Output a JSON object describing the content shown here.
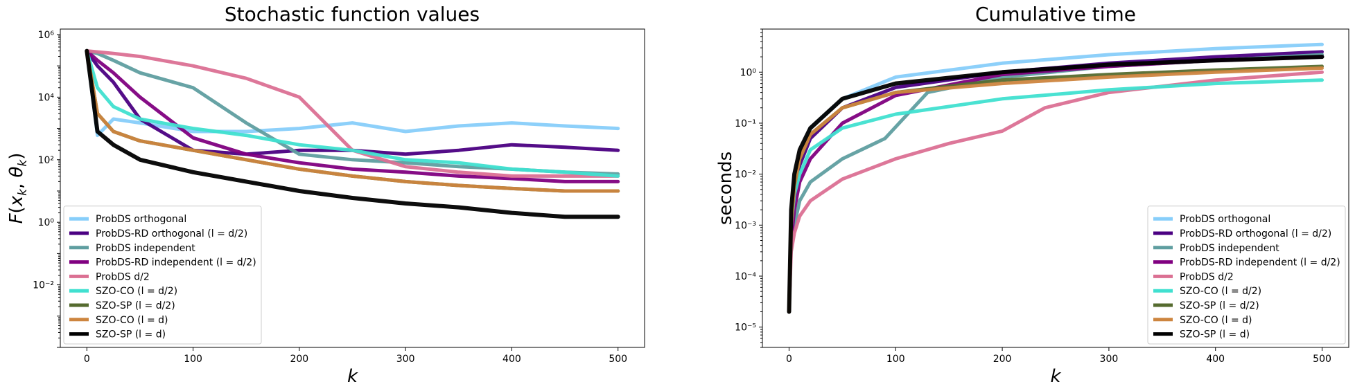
{
  "chart_data": [
    {
      "type": "line",
      "title": "Stochastic function values",
      "xlabel": "k",
      "ylabel": "F(x_k, θ_k)",
      "ylabel_parts": {
        "base": "F(",
        "x": "x",
        "x_sub": "k",
        "sep": ", ",
        "theta": "θ",
        "theta_sub": "k",
        "close": ")"
      },
      "yscale": "log",
      "xlim": [
        -25,
        525
      ],
      "ylim": [
        0.0001,
        1500000
      ],
      "xticks": [
        0,
        100,
        200,
        300,
        400,
        500
      ],
      "ytick_exponents": [
        -2,
        0,
        2,
        4,
        6
      ],
      "legend_position": "lower-left",
      "series": [
        {
          "name": "ProbDS orthogonal",
          "color": "#87CEFA",
          "x": [
            0,
            10,
            25,
            50,
            100,
            150,
            200,
            250,
            300,
            350,
            400,
            450,
            500
          ],
          "y": [
            300000,
            600,
            2000,
            1500,
            800,
            800,
            1000,
            1500,
            800,
            1200,
            1500,
            1200,
            1000
          ]
        },
        {
          "name": "ProbDS-RD orthogonal (l = d/2)",
          "color": "#4B0082",
          "x": [
            0,
            10,
            25,
            50,
            100,
            150,
            200,
            250,
            300,
            350,
            400,
            450,
            500
          ],
          "y": [
            300000,
            100000,
            30000,
            2000,
            200,
            150,
            200,
            200,
            150,
            200,
            300,
            250,
            200
          ]
        },
        {
          "name": "ProbDS independent",
          "color": "#5F9EA0",
          "x": [
            0,
            10,
            25,
            50,
            100,
            150,
            200,
            250,
            300,
            350,
            400,
            450,
            500
          ],
          "y": [
            300000,
            250000,
            150000,
            60000,
            20000,
            1500,
            150,
            100,
            80,
            60,
            50,
            40,
            35
          ]
        },
        {
          "name": "ProbDS-RD independent (l = d/2)",
          "color": "#800080",
          "x": [
            0,
            10,
            25,
            50,
            100,
            150,
            200,
            250,
            300,
            350,
            400,
            450,
            500
          ],
          "y": [
            300000,
            150000,
            60000,
            10000,
            500,
            150,
            80,
            50,
            40,
            30,
            25,
            20,
            20
          ]
        },
        {
          "name": "ProbDS d/2",
          "color": "#DB7093",
          "x": [
            0,
            10,
            25,
            50,
            100,
            150,
            200,
            250,
            300,
            350,
            400,
            450,
            500
          ],
          "y": [
            300000,
            280000,
            250000,
            200000,
            100000,
            40000,
            10000,
            200,
            60,
            40,
            30,
            30,
            30
          ]
        },
        {
          "name": "SZO-CO (l = d/2)",
          "color": "#40E0D0",
          "x": [
            0,
            10,
            25,
            50,
            100,
            150,
            200,
            250,
            300,
            350,
            400,
            450,
            500
          ],
          "y": [
            300000,
            20000,
            5000,
            2000,
            1000,
            600,
            300,
            200,
            100,
            80,
            50,
            40,
            30
          ]
        },
        {
          "name": "SZO-SP (l = d/2)",
          "color": "#556B2F",
          "x": [
            0,
            10,
            25,
            50,
            100,
            150,
            200,
            250,
            300,
            350,
            400,
            450,
            500
          ],
          "y": [
            300000,
            3000,
            800,
            400,
            200,
            100,
            50,
            30,
            20,
            15,
            12,
            10,
            10
          ]
        },
        {
          "name": "SZO-CO (l = d)",
          "color": "#CD853F",
          "x": [
            0,
            10,
            25,
            50,
            100,
            150,
            200,
            250,
            300,
            350,
            400,
            450,
            500
          ],
          "y": [
            300000,
            3000,
            800,
            400,
            200,
            100,
            50,
            30,
            20,
            15,
            12,
            10,
            10
          ]
        },
        {
          "name": "SZO-SP (l = d)",
          "color": "#000000",
          "x": [
            0,
            10,
            25,
            50,
            100,
            150,
            200,
            250,
            300,
            350,
            400,
            450,
            500
          ],
          "y": [
            300000,
            800,
            300,
            100,
            40,
            20,
            10,
            6,
            4,
            3,
            2,
            1.5,
            1.5
          ]
        }
      ]
    },
    {
      "type": "line",
      "title": "Cumulative time",
      "xlabel": "k",
      "ylabel": "seconds",
      "yscale": "log",
      "xlim": [
        -25,
        525
      ],
      "ylim": [
        4e-06,
        7
      ],
      "xticks": [
        0,
        100,
        200,
        300,
        400,
        500
      ],
      "ytick_exponents": [
        -5,
        -4,
        -3,
        -2,
        -1,
        0
      ],
      "legend_position": "lower-right",
      "series": [
        {
          "name": "ProbDS orthogonal",
          "color": "#87CEFA",
          "x": [
            0,
            2,
            5,
            10,
            20,
            50,
            100,
            200,
            300,
            400,
            500
          ],
          "y": [
            2e-05,
            0.001,
            0.006,
            0.02,
            0.08,
            0.3,
            0.8,
            1.5,
            2.2,
            2.9,
            3.5
          ]
        },
        {
          "name": "ProbDS-RD orthogonal (l = d/2)",
          "color": "#4B0082",
          "x": [
            0,
            2,
            5,
            10,
            20,
            50,
            100,
            200,
            300,
            400,
            500
          ],
          "y": [
            2e-05,
            0.001,
            0.005,
            0.015,
            0.05,
            0.2,
            0.5,
            1.0,
            1.5,
            2.0,
            2.5
          ]
        },
        {
          "name": "ProbDS independent",
          "color": "#5F9EA0",
          "x": [
            0,
            2,
            5,
            10,
            20,
            50,
            90,
            130,
            200,
            300,
            400,
            500
          ],
          "y": [
            2e-05,
            0.0005,
            0.001,
            0.003,
            0.007,
            0.02,
            0.05,
            0.4,
            0.8,
            1.3,
            1.7,
            2.2
          ]
        },
        {
          "name": "ProbDS-RD independent (l = d/2)",
          "color": "#800080",
          "x": [
            0,
            2,
            5,
            10,
            20,
            50,
            100,
            200,
            300,
            400,
            500
          ],
          "y": [
            2e-05,
            0.0005,
            0.002,
            0.007,
            0.02,
            0.1,
            0.35,
            0.9,
            1.3,
            1.7,
            2.0
          ]
        },
        {
          "name": "ProbDS d/2",
          "color": "#DB7093",
          "x": [
            0,
            2,
            5,
            10,
            20,
            50,
            100,
            150,
            200,
            240,
            300,
            400,
            500
          ],
          "y": [
            2e-05,
            0.0003,
            0.0007,
            0.0015,
            0.003,
            0.008,
            0.02,
            0.04,
            0.07,
            0.2,
            0.4,
            0.7,
            1.0
          ]
        },
        {
          "name": "SZO-CO (l = d/2)",
          "color": "#40E0D0",
          "x": [
            0,
            2,
            5,
            10,
            20,
            50,
            100,
            200,
            300,
            400,
            500
          ],
          "y": [
            2e-05,
            0.001,
            0.004,
            0.01,
            0.03,
            0.08,
            0.15,
            0.3,
            0.45,
            0.6,
            0.7
          ]
        },
        {
          "name": "SZO-SP (l = d/2)",
          "color": "#556B2F",
          "x": [
            0,
            2,
            5,
            10,
            20,
            50,
            100,
            200,
            300,
            400,
            500
          ],
          "y": [
            2e-05,
            0.001,
            0.006,
            0.02,
            0.06,
            0.2,
            0.4,
            0.7,
            0.9,
            1.1,
            1.3
          ]
        },
        {
          "name": "SZO-CO (l = d)",
          "color": "#CD853F",
          "x": [
            0,
            2,
            5,
            10,
            20,
            50,
            100,
            200,
            300,
            400,
            500
          ],
          "y": [
            2e-05,
            0.001,
            0.006,
            0.02,
            0.06,
            0.2,
            0.4,
            0.6,
            0.8,
            1.0,
            1.2
          ]
        },
        {
          "name": "SZO-SP (l = d)",
          "color": "#000000",
          "x": [
            0,
            2,
            5,
            10,
            20,
            50,
            100,
            200,
            300,
            400,
            500
          ],
          "y": [
            2e-05,
            0.002,
            0.01,
            0.03,
            0.08,
            0.3,
            0.6,
            1.0,
            1.4,
            1.7,
            2.0
          ]
        }
      ]
    }
  ]
}
